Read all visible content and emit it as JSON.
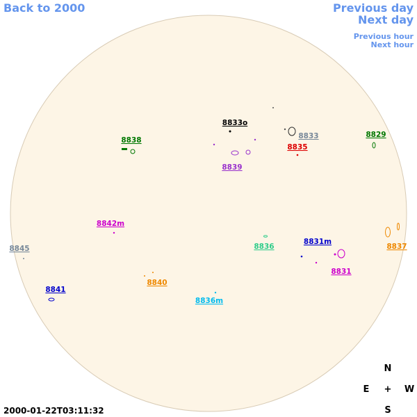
{
  "navigation": {
    "back": "Back to 2000",
    "previous_day": "Previous day",
    "next_day": "Next day",
    "previous_hour": "Previous hour",
    "next_hour": "Next hour"
  },
  "regions": [
    {
      "label": "8833o",
      "color": "#000000"
    },
    {
      "label": "8833",
      "color": "#778899"
    },
    {
      "label": "8835",
      "color": "#dd0000"
    },
    {
      "label": "8829",
      "color": "#007700"
    },
    {
      "label": "8838",
      "color": "#007700"
    },
    {
      "label": "8839",
      "color": "#9932cc"
    },
    {
      "label": "8842m",
      "color": "#cc00cc"
    },
    {
      "label": "8845",
      "color": "#778899"
    },
    {
      "label": "8836",
      "color": "#2ecc8a"
    },
    {
      "label": "8831m",
      "color": "#0000cc"
    },
    {
      "label": "8837",
      "color": "#ee8800"
    },
    {
      "label": "8831",
      "color": "#cc00cc"
    },
    {
      "label": "8840",
      "color": "#ee8800"
    },
    {
      "label": "8841",
      "color": "#0000cc"
    },
    {
      "label": "8836m",
      "color": "#00bbee"
    }
  ],
  "compass": {
    "north": "N",
    "east": "E",
    "center": "+",
    "west": "W",
    "south": "S"
  },
  "timestamp": "2000-01-22T03:11:32"
}
